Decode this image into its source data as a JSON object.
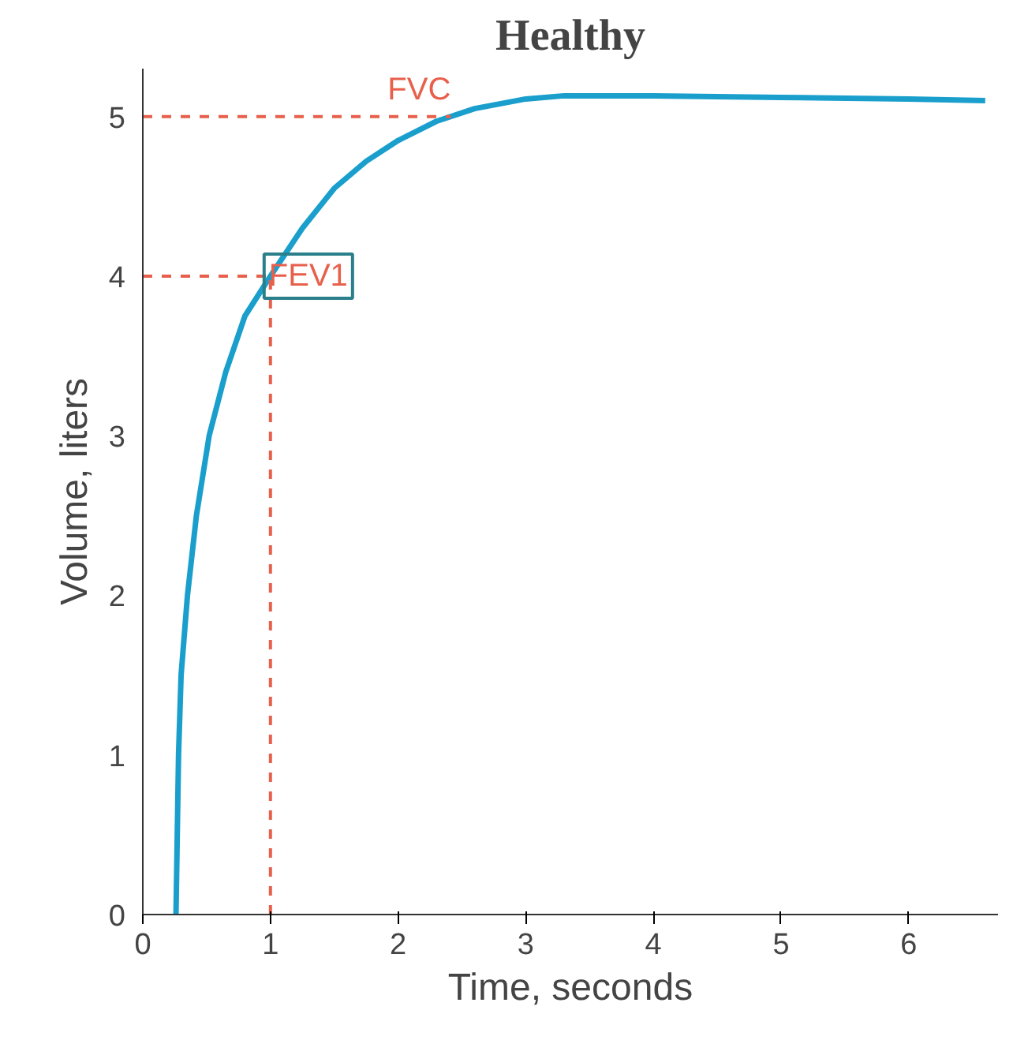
{
  "chart_data": {
    "type": "line",
    "title": "Healthy",
    "xlabel": "Time, seconds",
    "ylabel": "Volume, liters",
    "x": [
      0.26,
      0.27,
      0.28,
      0.3,
      0.35,
      0.42,
      0.52,
      0.65,
      0.8,
      1,
      1.25,
      1.5,
      1.75,
      2,
      2.3,
      2.6,
      3,
      3.3,
      4,
      5,
      6,
      6.6
    ],
    "series": [
      {
        "color": "#1a9fcc",
        "values": [
          0,
          0.5,
          1,
          1.5,
          2,
          2.5,
          3,
          3.4,
          3.75,
          4,
          4.3,
          4.55,
          4.72,
          4.85,
          4.97,
          5.05,
          5.11,
          5.13,
          5.13,
          5.12,
          5.11,
          5.1
        ]
      }
    ],
    "xlim": [
      0,
      6.7
    ],
    "ylim": [
      0,
      5.3
    ],
    "xticks": [
      0,
      1,
      2,
      3,
      4,
      5,
      6
    ],
    "yticks": [
      0,
      1,
      2,
      3,
      4,
      5
    ],
    "grid": false,
    "marker": "none",
    "line_style": "solid",
    "ref_lines": [
      {
        "axis": "y",
        "value": 5,
        "label": "FVC",
        "color": "#e8604c",
        "line_style": "dashed"
      },
      {
        "axis": "y",
        "value": 4,
        "label": "FEV1",
        "color": "#e8604c",
        "line_style": "dashed"
      },
      {
        "axis": "x",
        "value": 1,
        "color": "#e8604c",
        "line_style": "dashed"
      }
    ]
  }
}
